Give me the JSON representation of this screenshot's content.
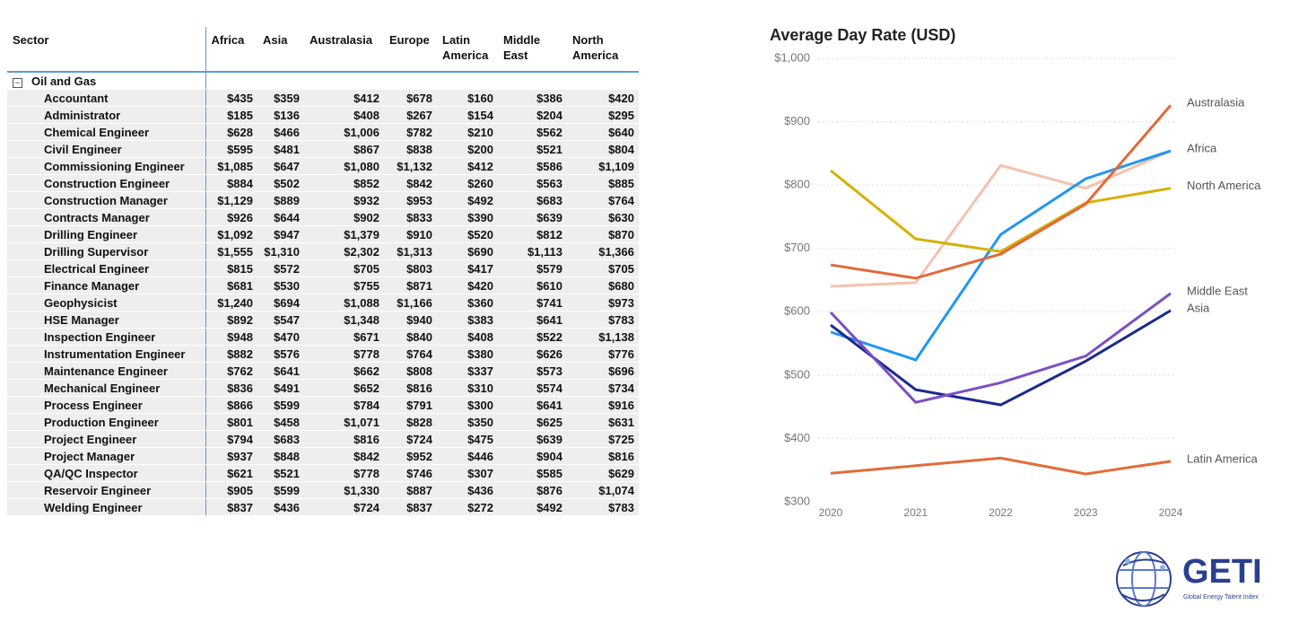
{
  "table": {
    "columns": [
      "Sector",
      "Africa",
      "Asia",
      "Australasia",
      "Europe",
      "Latin America",
      "Middle East",
      "North America"
    ],
    "group": "Oil and Gas",
    "rows": [
      [
        "Accountant",
        "$435",
        "$359",
        "$412",
        "$678",
        "$160",
        "$386",
        "$420"
      ],
      [
        "Administrator",
        "$185",
        "$136",
        "$408",
        "$267",
        "$154",
        "$204",
        "$295"
      ],
      [
        "Chemical Engineer",
        "$628",
        "$466",
        "$1,006",
        "$782",
        "$210",
        "$562",
        "$640"
      ],
      [
        "Civil Engineer",
        "$595",
        "$481",
        "$867",
        "$838",
        "$200",
        "$521",
        "$804"
      ],
      [
        "Commissioning Engineer",
        "$1,085",
        "$647",
        "$1,080",
        "$1,132",
        "$412",
        "$586",
        "$1,109"
      ],
      [
        "Construction Engineer",
        "$884",
        "$502",
        "$852",
        "$842",
        "$260",
        "$563",
        "$885"
      ],
      [
        "Construction Manager",
        "$1,129",
        "$889",
        "$932",
        "$953",
        "$492",
        "$683",
        "$764"
      ],
      [
        "Contracts Manager",
        "$926",
        "$644",
        "$902",
        "$833",
        "$390",
        "$639",
        "$630"
      ],
      [
        "Drilling Engineer",
        "$1,092",
        "$947",
        "$1,379",
        "$910",
        "$520",
        "$812",
        "$870"
      ],
      [
        "Drilling Supervisor",
        "$1,555",
        "$1,310",
        "$2,302",
        "$1,313",
        "$690",
        "$1,113",
        "$1,366"
      ],
      [
        "Electrical Engineer",
        "$815",
        "$572",
        "$705",
        "$803",
        "$417",
        "$579",
        "$705"
      ],
      [
        "Finance Manager",
        "$681",
        "$530",
        "$755",
        "$871",
        "$420",
        "$610",
        "$680"
      ],
      [
        "Geophysicist",
        "$1,240",
        "$694",
        "$1,088",
        "$1,166",
        "$360",
        "$741",
        "$973"
      ],
      [
        "HSE Manager",
        "$892",
        "$547",
        "$1,348",
        "$940",
        "$383",
        "$641",
        "$783"
      ],
      [
        "Inspection Engineer",
        "$948",
        "$470",
        "$671",
        "$840",
        "$408",
        "$522",
        "$1,138"
      ],
      [
        "Instrumentation Engineer",
        "$882",
        "$576",
        "$778",
        "$764",
        "$380",
        "$626",
        "$776"
      ],
      [
        "Maintenance Engineer",
        "$762",
        "$641",
        "$662",
        "$808",
        "$337",
        "$573",
        "$696"
      ],
      [
        "Mechanical Engineer",
        "$836",
        "$491",
        "$652",
        "$816",
        "$310",
        "$574",
        "$734"
      ],
      [
        "Process Engineer",
        "$866",
        "$599",
        "$784",
        "$791",
        "$300",
        "$641",
        "$916"
      ],
      [
        "Production Engineer",
        "$801",
        "$458",
        "$1,071",
        "$828",
        "$350",
        "$625",
        "$631"
      ],
      [
        "Project Engineer",
        "$794",
        "$683",
        "$816",
        "$724",
        "$475",
        "$639",
        "$725"
      ],
      [
        "Project Manager",
        "$937",
        "$848",
        "$842",
        "$952",
        "$446",
        "$904",
        "$816"
      ],
      [
        "QA/QC Inspector",
        "$621",
        "$521",
        "$778",
        "$746",
        "$307",
        "$585",
        "$629"
      ],
      [
        "Reservoir Engineer",
        "$905",
        "$599",
        "$1,330",
        "$887",
        "$436",
        "$876",
        "$1,074"
      ],
      [
        "Welding Engineer",
        "$837",
        "$436",
        "$724",
        "$837",
        "$272",
        "$492",
        "$783"
      ]
    ]
  },
  "chart_data": {
    "type": "line",
    "title": "Average Day Rate (USD)",
    "categories": [
      "2020",
      "2021",
      "2022",
      "2023",
      "2024"
    ],
    "ylim": [
      300,
      1000
    ],
    "yticks": [
      {
        "value": 300,
        "label": "$300"
      },
      {
        "value": 400,
        "label": "$400"
      },
      {
        "value": 500,
        "label": "$500"
      },
      {
        "value": 600,
        "label": "$600"
      },
      {
        "value": 700,
        "label": "$700"
      },
      {
        "value": 800,
        "label": "$800"
      },
      {
        "value": 900,
        "label": "$900"
      },
      {
        "value": 1000,
        "label": "$1,000"
      }
    ],
    "grid": true,
    "series": [
      {
        "name": "Latin America",
        "color": "#e36c39",
        "values": [
          345,
          357,
          369,
          344,
          364
        ]
      },
      {
        "name": null,
        "color": "#f4c2ae",
        "values": [
          640,
          646,
          831,
          795,
          854
        ]
      },
      {
        "name": "Africa",
        "color": "#2196f3",
        "values": [
          568,
          524,
          722,
          810,
          854
        ]
      },
      {
        "name": "North America",
        "color": "#d4b106",
        "values": [
          823,
          715,
          695,
          772,
          795
        ]
      },
      {
        "name": "Asia",
        "color": "#1a2a8c",
        "values": [
          579,
          477,
          453,
          522,
          602
        ]
      },
      {
        "name": "Middle East",
        "color": "#7b4fc4",
        "values": [
          599,
          457,
          488,
          530,
          629
        ]
      },
      {
        "name": "Australasia",
        "color": "#e06a3c",
        "values": [
          674,
          653,
          691,
          770,
          926
        ]
      }
    ]
  },
  "logo": {
    "name": "GETI",
    "tagline": "Global Energy Talent Index"
  }
}
